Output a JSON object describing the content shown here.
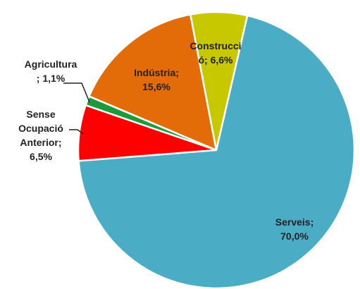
{
  "chart_data": {
    "type": "pie",
    "categories": [
      "Construcció",
      "Serveis",
      "Sense Ocupació Anterior",
      "Agricultura",
      "Indústria"
    ],
    "values": [
      6.6,
      70.0,
      6.5,
      1.1,
      15.6
    ],
    "value_labels": [
      "Construcci\nó; 6,6%",
      "Serveis;\n70,0%",
      "Sense\nOcupació\nAnterior;\n6,5%",
      "Agricultura\n; 1,1%",
      "Indústria;\n15,6%"
    ],
    "colors": [
      "#c8c800",
      "#4bacc6",
      "#ff0000",
      "#1e9a3c",
      "#e36c09"
    ]
  }
}
